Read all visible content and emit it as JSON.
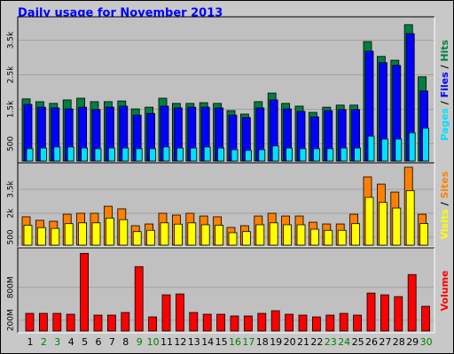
{
  "chart_data": [
    {
      "type": "bar",
      "title": "Daily usage for November 2013",
      "ylim": [
        0,
        4100
      ],
      "yticks": [
        500,
        {
          "value": 1500,
          "label": "1.5k"
        },
        {
          "value": 2500,
          "label": "2.5k"
        },
        {
          "value": 3500,
          "label": "3.5k"
        }
      ],
      "grid": true,
      "legend_separator": " / ",
      "series": [
        {
          "name": "Hits",
          "color": "#008040",
          "values": [
            1800,
            1720,
            1670,
            1770,
            1820,
            1720,
            1720,
            1740,
            1510,
            1560,
            1820,
            1670,
            1670,
            1690,
            1670,
            1460,
            1360,
            1720,
            1970,
            1670,
            1590,
            1410,
            1560,
            1620,
            1620,
            3460,
            3030,
            2920,
            3950,
            2440
          ]
        },
        {
          "name": "Files",
          "color": "#0000ff",
          "values": [
            1640,
            1560,
            1540,
            1510,
            1560,
            1490,
            1560,
            1590,
            1330,
            1380,
            1590,
            1540,
            1560,
            1560,
            1540,
            1330,
            1260,
            1540,
            1770,
            1510,
            1440,
            1280,
            1460,
            1490,
            1490,
            3180,
            2850,
            2770,
            3690,
            2030
          ]
        },
        {
          "name": "Pages",
          "color": "#00e0ff",
          "values": [
            360,
            380,
            410,
            410,
            380,
            360,
            380,
            380,
            360,
            360,
            410,
            380,
            380,
            410,
            380,
            330,
            310,
            330,
            440,
            380,
            360,
            360,
            360,
            380,
            380,
            720,
            640,
            640,
            820,
            950
          ]
        }
      ]
    },
    {
      "type": "bar",
      "ylim": [
        0,
        5000
      ],
      "yticks": [
        500,
        {
          "value": 2000,
          "label": "2k"
        },
        {
          "value": 3500,
          "label": "3.5k"
        }
      ],
      "grid": true,
      "legend_separator": " / ",
      "series": [
        {
          "name": "Sites",
          "color": "#ff8000",
          "values": [
            1780,
            1560,
            1500,
            1940,
            2000,
            2000,
            2440,
            2280,
            1220,
            1330,
            2000,
            1890,
            2000,
            1830,
            1780,
            1110,
            1220,
            1830,
            2000,
            1830,
            1830,
            1440,
            1330,
            1330,
            1940,
            4280,
            3830,
            3330,
            4890,
            1940
          ]
        },
        {
          "name": "Visits",
          "color": "#ffff00",
          "values": [
            1250,
            1100,
            1050,
            1350,
            1400,
            1400,
            1700,
            1600,
            850,
            930,
            1400,
            1320,
            1400,
            1280,
            1250,
            780,
            850,
            1280,
            1400,
            1280,
            1280,
            1000,
            930,
            930,
            1350,
            3000,
            2680,
            2330,
            3420,
            1360
          ]
        }
      ]
    },
    {
      "type": "bar",
      "ylim": [
        0,
        1480
      ],
      "yticks": [
        {
          "value": 200,
          "label": "200M"
        },
        {
          "value": 800,
          "label": "800M"
        }
      ],
      "grid": true,
      "categories": [
        "1",
        "2",
        "3",
        "4",
        "5",
        "6",
        "7",
        "8",
        "9",
        "10",
        "11",
        "12",
        "13",
        "14",
        "15",
        "16",
        "17",
        "18",
        "19",
        "20",
        "21",
        "22",
        "23",
        "24",
        "25",
        "26",
        "27",
        "28",
        "29",
        "30"
      ],
      "category_colors": [
        "#000000",
        "#008000",
        "#008000",
        "#000000",
        "#000000",
        "#000000",
        "#000000",
        "#000000",
        "#008000",
        "#008000",
        "#000000",
        "#000000",
        "#000000",
        "#000000",
        "#000000",
        "#008000",
        "#008000",
        "#000000",
        "#000000",
        "#000000",
        "#000000",
        "#000000",
        "#008000",
        "#008000",
        "#000000",
        "#000000",
        "#000000",
        "#000000",
        "#000000",
        "#008000"
      ],
      "series": [
        {
          "name": "Volume",
          "color": "#ff0000",
          "values": [
            324,
            324,
            324,
            308,
            1426,
            292,
            292,
            340,
            1183,
            259,
            665,
            681,
            340,
            308,
            308,
            276,
            276,
            324,
            373,
            308,
            292,
            259,
            292,
            324,
            292,
            697,
            665,
            632,
            1037,
            454
          ]
        }
      ]
    }
  ]
}
